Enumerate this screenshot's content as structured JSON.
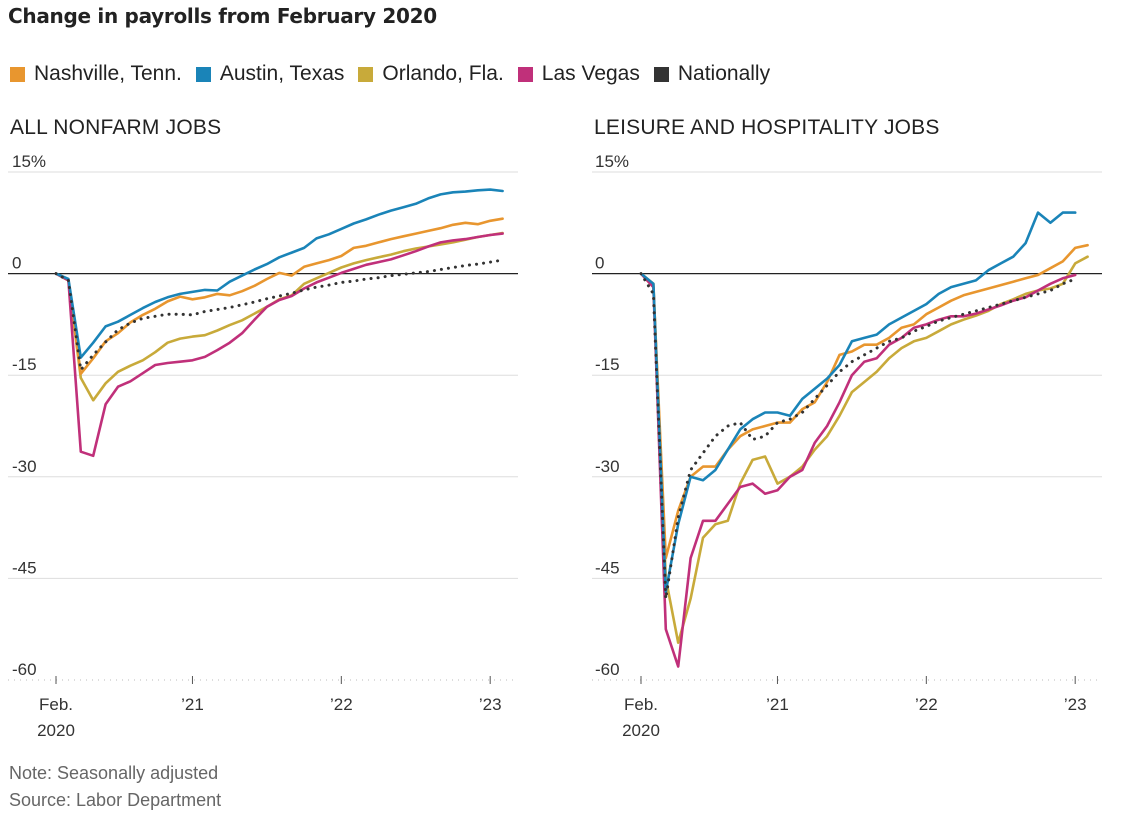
{
  "title": "Change in payrolls from February 2020",
  "legend": [
    {
      "label": "Nashville, Tenn.",
      "color": "#e8962f"
    },
    {
      "label": "Austin, Texas",
      "color": "#1a84b8"
    },
    {
      "label": "Orlando, Fla.",
      "color": "#c8aa3a"
    },
    {
      "label": "Las Vegas",
      "color": "#c0307a"
    },
    {
      "label": "Nationally",
      "color": "#333333"
    }
  ],
  "notes": {
    "note": "Note: Seasonally adjusted",
    "source": "Source: Labor Department"
  },
  "chart_data": [
    {
      "type": "line",
      "title": "ALL NONFARM JOBS",
      "ylim": [
        -60,
        15
      ],
      "yticks": [
        15,
        0,
        -15,
        -30,
        -45,
        -60
      ],
      "ytick_labels": [
        "15%",
        "0",
        "-15",
        "-30",
        "-45",
        "-60"
      ],
      "xticks": [
        {
          "index": 0,
          "label": "Feb.",
          "sublabel": "2020"
        },
        {
          "index": 11,
          "label": "’21"
        },
        {
          "index": 23,
          "label": "’22"
        },
        {
          "index": 35,
          "label": "’23"
        }
      ],
      "x_start": "2020-02",
      "x_end": "2023-03",
      "grid": true,
      "series": [
        {
          "name": "Nashville, Tenn.",
          "values": [
            0,
            -1,
            -14.8,
            -12.5,
            -10,
            -8.8,
            -7.2,
            -6.1,
            -5.2,
            -4.1,
            -3.4,
            -3.8,
            -3.5,
            -3,
            -3.2,
            -2.6,
            -1.8,
            -0.8,
            0.1,
            -0.3,
            1,
            1.5,
            2,
            2.6,
            3.8,
            4.1,
            4.6,
            5.1,
            5.5,
            5.9,
            6.3,
            6.7,
            7.2,
            7.5,
            7.3,
            7.8,
            8.1
          ]
        },
        {
          "name": "Austin, Texas",
          "values": [
            0,
            -0.8,
            -12.4,
            -10.2,
            -7.8,
            -7.1,
            -6.1,
            -5.1,
            -4.2,
            -3.5,
            -3,
            -2.7,
            -2.4,
            -2.5,
            -1.2,
            -0.3,
            0.6,
            1.4,
            2.4,
            3.1,
            3.8,
            5.2,
            5.8,
            6.6,
            7.4,
            8,
            8.7,
            9.3,
            9.8,
            10.3,
            11.1,
            11.7,
            12,
            12.1,
            12.3,
            12.4,
            12.2
          ]
        },
        {
          "name": "Orlando, Fla.",
          "values": [
            0,
            -1,
            -15.4,
            -18.7,
            -16.2,
            -14.5,
            -13.6,
            -12.8,
            -11.6,
            -10.2,
            -9.6,
            -9.3,
            -9.1,
            -8.4,
            -7.6,
            -6.9,
            -5.9,
            -4.9,
            -3.8,
            -3.2,
            -1.5,
            -0.7,
            0.1,
            0.9,
            1.5,
            2,
            2.4,
            2.8,
            3.3,
            3.7,
            4,
            4.3,
            4.6,
            5,
            5.4,
            5.7,
            6
          ]
        },
        {
          "name": "Las Vegas",
          "values": [
            0,
            -1,
            -26.3,
            -26.9,
            -19.3,
            -16.7,
            -15.9,
            -14.7,
            -13.5,
            -13.2,
            -13,
            -12.8,
            -12.3,
            -11.3,
            -10.2,
            -8.8,
            -6.8,
            -4.9,
            -3.9,
            -3.3,
            -2.2,
            -1.3,
            -0.6,
            0.1,
            0.7,
            1.3,
            1.7,
            2.1,
            2.7,
            3.3,
            4,
            4.6,
            4.9,
            5.1,
            5.4,
            5.7,
            5.9
          ]
        },
        {
          "name": "Nationally",
          "values": [
            0,
            -1,
            -14.2,
            -12,
            -10.1,
            -8.3,
            -7.3,
            -6.6,
            -6.3,
            -6,
            -6,
            -6.1,
            -5.6,
            -5.3,
            -5,
            -4.6,
            -4.2,
            -3.7,
            -3.3,
            -2.9,
            -2.4,
            -2,
            -1.7,
            -1.3,
            -1.1,
            -0.8,
            -0.6,
            -0.3,
            -0.1,
            0.1,
            0.3,
            0.6,
            0.9,
            1.2,
            1.4,
            1.7,
            2
          ]
        }
      ]
    },
    {
      "type": "line",
      "title": "LEISURE AND HOSPITALITY JOBS",
      "ylim": [
        -60,
        15
      ],
      "yticks": [
        15,
        0,
        -15,
        -30,
        -45,
        -60
      ],
      "ytick_labels": [
        "15%",
        "0",
        "-15",
        "-30",
        "-45",
        "-60"
      ],
      "xticks": [
        {
          "index": 0,
          "label": "Feb.",
          "sublabel": "2020"
        },
        {
          "index": 11,
          "label": "’21"
        },
        {
          "index": 23,
          "label": "’22"
        },
        {
          "index": 35,
          "label": "’23"
        }
      ],
      "x_start": "2020-02",
      "x_end": "2023-03",
      "grid": true,
      "series": [
        {
          "name": "Nashville, Tenn.",
          "values": [
            0,
            -2,
            -42,
            -35,
            -30,
            -28.5,
            -28.5,
            -26,
            -24,
            -23,
            -22.5,
            -22,
            -22,
            -20,
            -19,
            -16,
            -12,
            -11.5,
            -10.5,
            -10.5,
            -9.5,
            -8,
            -7.5,
            -6,
            -5,
            -4,
            -3.2,
            -2.7,
            -2.2,
            -1.7,
            -1.2,
            -0.7,
            -0.2,
            0.8,
            1.8,
            3.8,
            4.2
          ]
        },
        {
          "name": "Austin, Texas",
          "values": [
            0,
            -1.5,
            -47,
            -37,
            -30,
            -30.5,
            -29,
            -26,
            -23,
            -21.5,
            -20.5,
            -20.5,
            -21,
            -18.5,
            -17,
            -15.5,
            -13.5,
            -10,
            -9.5,
            -9,
            -7.5,
            -6.5,
            -5.5,
            -4.5,
            -3,
            -2,
            -1.5,
            -1,
            0.5,
            1.5,
            2.5,
            4.5,
            9,
            7.5,
            9,
            9
          ]
        },
        {
          "name": "Orlando, Fla.",
          "values": [
            0,
            -1.5,
            -45,
            -54.5,
            -48,
            -39,
            -37,
            -36.5,
            -31,
            -27.5,
            -27,
            -31,
            -30,
            -28.5,
            -26,
            -24,
            -21,
            -17.5,
            -16,
            -14.5,
            -12.5,
            -11,
            -10,
            -9.5,
            -8.5,
            -7.5,
            -6.8,
            -6.2,
            -5.5,
            -4.5,
            -3.8,
            -3,
            -2.5,
            -2.2,
            -1.5,
            1.5,
            2.5
          ]
        },
        {
          "name": "Las Vegas",
          "values": [
            0,
            -2,
            -52.5,
            -58,
            -42,
            -36.5,
            -36.5,
            -34,
            -31.5,
            -31,
            -32.5,
            -32,
            -30,
            -29,
            -25,
            -22.5,
            -19,
            -15,
            -13,
            -12.5,
            -10.5,
            -9.5,
            -8,
            -7.5,
            -6.8,
            -6.3,
            -6.3,
            -5.9,
            -5.3,
            -4.7,
            -4,
            -3.5,
            -2.5,
            -1.5,
            -0.7,
            -0.2
          ]
        },
        {
          "name": "Nationally",
          "values": [
            0,
            -3,
            -48,
            -36,
            -29,
            -26.5,
            -24,
            -22.5,
            -22,
            -24.5,
            -24,
            -22,
            -21.5,
            -20.5,
            -18.5,
            -16.5,
            -14.5,
            -13,
            -12,
            -11,
            -10,
            -9.5,
            -8.5,
            -7.8,
            -7,
            -6.5,
            -6,
            -5.5,
            -5,
            -4.5,
            -4,
            -3.5,
            -3,
            -2.5,
            -1.5,
            -0.8
          ]
        }
      ]
    }
  ]
}
